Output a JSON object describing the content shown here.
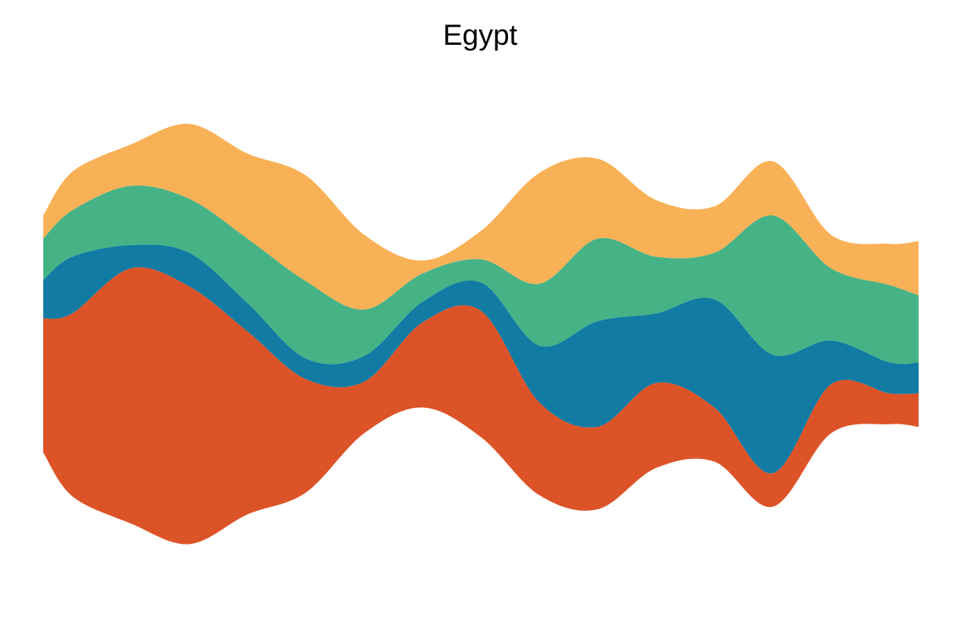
{
  "chart_data": {
    "type": "area",
    "subtype": "streamgraph",
    "title": "Egypt",
    "xlabel": "",
    "ylabel": "",
    "grid": false,
    "legend": "none",
    "x": [
      0,
      0.5,
      1.5,
      2.5,
      3.5,
      4.5,
      5.5,
      6.5,
      7.5,
      8.5,
      9.5,
      10.5,
      11.5,
      12.5,
      13.5,
      14.5,
      15
    ],
    "series": [
      {
        "color": "#dd5328",
        "values": [
          5.2,
          7.1,
          9.9,
          10.0,
          7.1,
          4.4,
          2.0,
          3.3,
          4.9,
          3.6,
          3.2,
          3.3,
          2.1,
          1.3,
          1.9,
          1.2,
          1.3
        ]
      },
      {
        "color": "#117ba3",
        "values": [
          1.5,
          2.2,
          0.9,
          1.3,
          1.1,
          0.8,
          1.0,
          0.8,
          1.1,
          2.2,
          4.1,
          2.7,
          4.2,
          4.6,
          1.7,
          1.2,
          1.2
        ]
      },
      {
        "color": "#46b386",
        "values": [
          1.6,
          1.8,
          2.3,
          2.1,
          2.5,
          3.0,
          1.8,
          1.1,
          0.9,
          2.4,
          3.2,
          2.2,
          1.8,
          5.4,
          2.8,
          3.0,
          2.6
        ]
      },
      {
        "color": "#f9b157",
        "values": [
          0.9,
          1.5,
          1.6,
          2.9,
          3.3,
          4.1,
          2.9,
          0.5,
          1.1,
          4.3,
          3.1,
          2.2,
          1.8,
          2.1,
          1.3,
          1.6,
          2.1
        ]
      }
    ]
  }
}
